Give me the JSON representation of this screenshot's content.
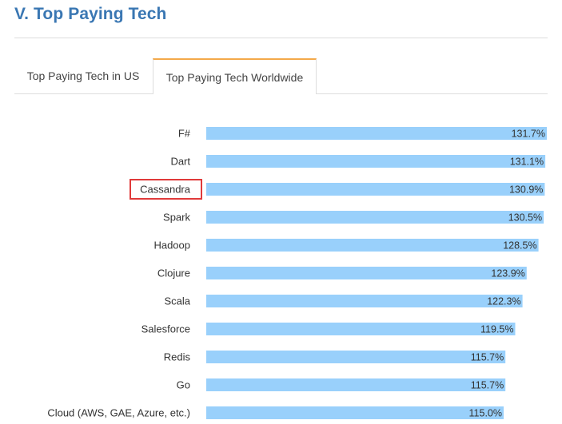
{
  "section": {
    "title": "V. Top Paying Tech"
  },
  "tabs": [
    {
      "label": "Top Paying Tech in US",
      "active": false
    },
    {
      "label": "Top Paying Tech Worldwide",
      "active": true
    }
  ],
  "colors": {
    "title": "#3a77b3",
    "bar": "#99d0fb",
    "active_tab_accent": "#f4a94a",
    "highlight_box": "#e03a3a"
  },
  "chart_data": {
    "type": "bar",
    "orientation": "horizontal",
    "categories": [
      "F#",
      "Dart",
      "Cassandra",
      "Spark",
      "Hadoop",
      "Clojure",
      "Scala",
      "Salesforce",
      "Redis",
      "Go",
      "Cloud (AWS, GAE, Azure, etc.)"
    ],
    "values": [
      131.7,
      131.1,
      130.9,
      130.5,
      128.5,
      123.9,
      122.3,
      119.5,
      115.7,
      115.7,
      115.0
    ],
    "value_labels": [
      "131.7%",
      "131.1%",
      "130.9%",
      "130.5%",
      "128.5%",
      "123.9%",
      "122.3%",
      "119.5%",
      "115.7%",
      "115.7%",
      "115.0%"
    ],
    "highlighted_category": "Cassandra",
    "xlim": [
      0,
      131.7
    ],
    "title": "",
    "xlabel": "",
    "ylabel": "",
    "grid": false,
    "legend": "none"
  }
}
